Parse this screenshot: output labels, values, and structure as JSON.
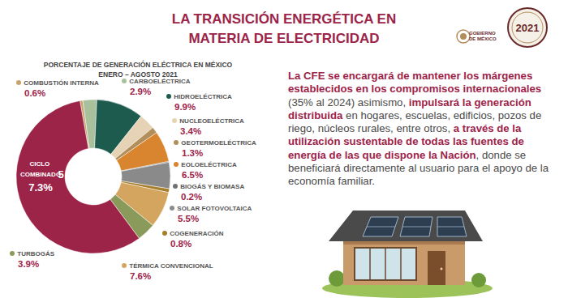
{
  "header": {
    "title": "LA TRANSICIÓN ENERGÉTICA EN MATERIA DE ELECTRICIDAD",
    "logo_text": "GOBIERNO DE MÉXICO",
    "logo_year": "2021"
  },
  "chart_data": {
    "type": "pie",
    "title": "PORCENTAJE DE GENERACIÓN ELÉCTRICA EN MÉXICO",
    "subtitle": "ENERO – AGOSTO 2021",
    "categories": [
      "COMBUSTIÓN INTERNA",
      "CARBOELÉCTRICA",
      "HIDROELÉCTRICA",
      "NUCLEOELÉCTRICA",
      "GEOTERMOELÉCTRICA",
      "EOLOELÉCTRICA",
      "BIOGÁS Y BIOMASA",
      "SOLAR FOTOVOLTAICA",
      "COGENERACIÓN",
      "TÉRMICA CONVENCIONAL",
      "TURBOGÁS",
      "CICLO COMBINADO"
    ],
    "values": [
      0.6,
      2.9,
      9.9,
      3.4,
      1.3,
      6.5,
      0.2,
      5.5,
      0.8,
      7.6,
      3.9,
      57.3
    ],
    "value_labels": [
      "0.6%",
      "2.9%",
      "9.9%",
      "3.4%",
      "1.3%",
      "6.5%",
      "0.2%",
      "5.5%",
      "0.8%",
      "7.6%",
      "3.9%",
      "57.3%"
    ],
    "colors": [
      "#c8a36a",
      "#a9c09c",
      "#1e5b4f",
      "#e6d2b5",
      "#b38e5d",
      "#d9852f",
      "#6f7271",
      "#8a8a8a",
      "#a57f2c",
      "#d4a55f",
      "#8a9a5b",
      "#9d2449"
    ],
    "data_labels": true
  },
  "text_block": {
    "segments": [
      {
        "text": "La CFE se encargará de mantener los márgenes establecidos en los compromisos internacionales",
        "bold": true
      },
      {
        "text": " (35% al 2024) asimismo, ",
        "bold": false
      },
      {
        "text": "impulsará la generación distribuida",
        "bold": true
      },
      {
        "text": " en hogares, escuelas, edificios, pozos de riego, núcleos rurales, entre otros, ",
        "bold": false
      },
      {
        "text": "a través de la utilización sustentable de todas las fuentes de energía de las que dispone la Nación",
        "bold": true
      },
      {
        "text": ", donde se beneficiará directamente al usuario para el apoyo de la economía familiar.",
        "bold": false
      }
    ]
  }
}
